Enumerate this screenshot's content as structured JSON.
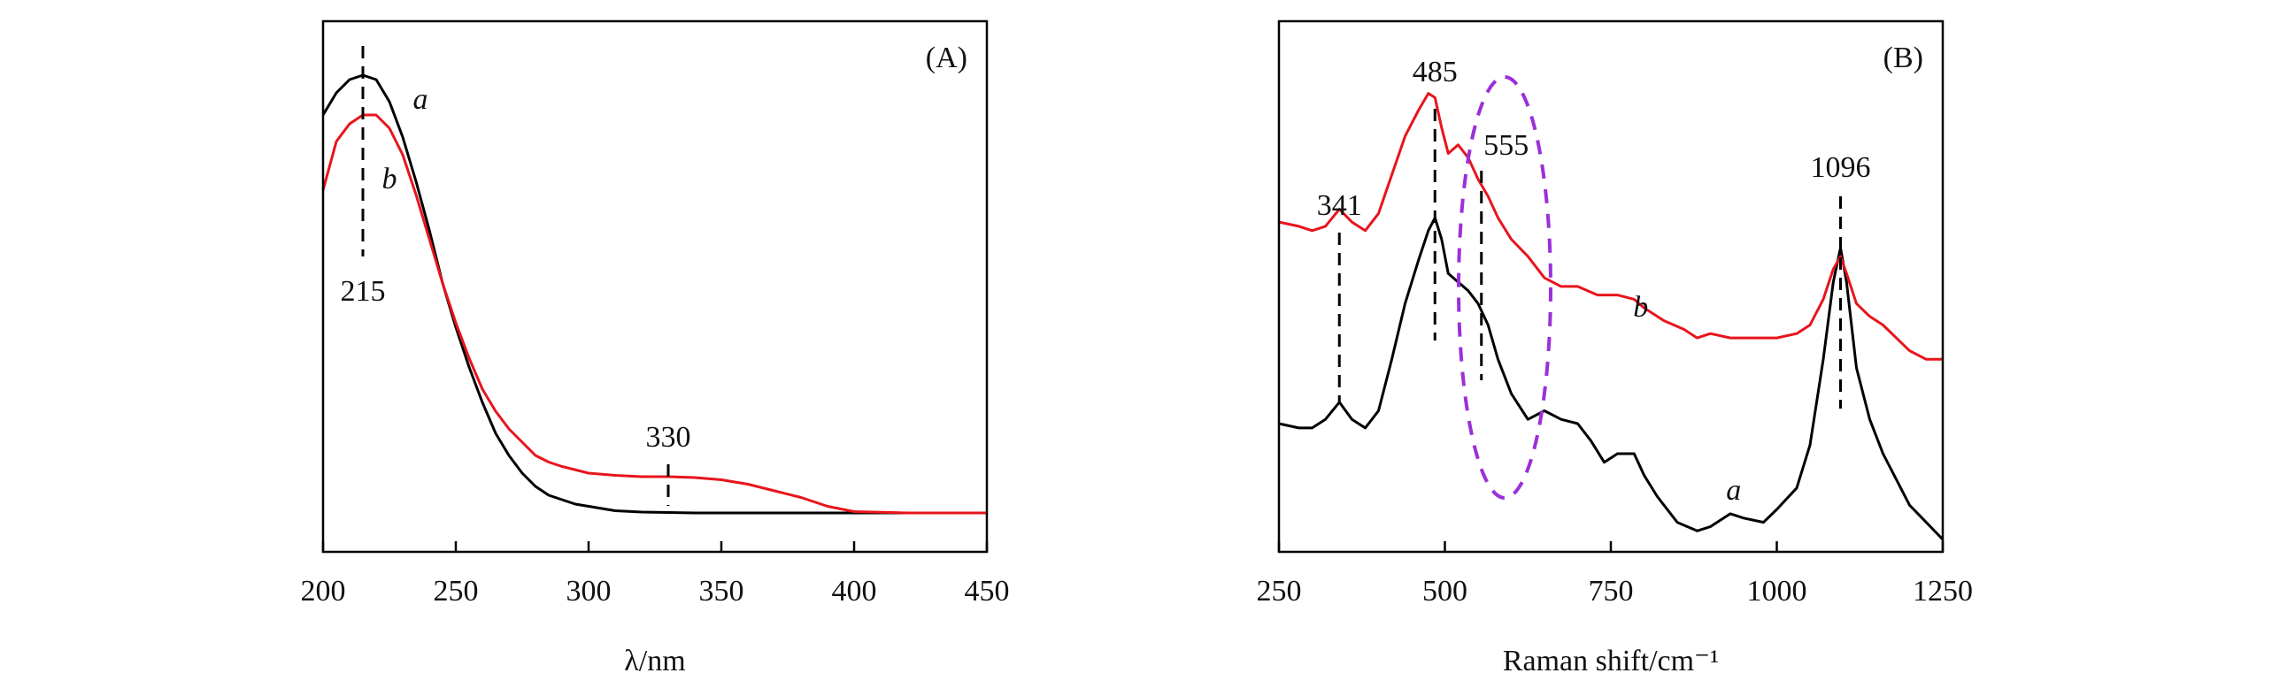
{
  "chart_data": [
    {
      "panel": "(A)",
      "type": "line",
      "xlabel": "λ/nm",
      "ylabel": "",
      "xlim": [
        200,
        450
      ],
      "ylim": [
        0,
        1
      ],
      "x_ticks": [
        "200",
        "250",
        "300",
        "350",
        "400",
        "450"
      ],
      "y_ticks_shown": false,
      "series": [
        {
          "name": "a",
          "color": "#000000",
          "x": [
            200,
            205,
            210,
            215,
            220,
            225,
            230,
            235,
            240,
            245,
            250,
            255,
            260,
            265,
            270,
            275,
            280,
            285,
            290,
            295,
            300,
            310,
            320,
            340,
            360,
            380,
            400,
            420,
            450
          ],
          "y": [
            0.9,
            0.95,
            0.98,
            0.99,
            0.98,
            0.93,
            0.85,
            0.75,
            0.64,
            0.52,
            0.42,
            0.33,
            0.25,
            0.18,
            0.13,
            0.09,
            0.06,
            0.04,
            0.03,
            0.02,
            0.015,
            0.005,
            0.002,
            0.0,
            0.0,
            0.0,
            0.0,
            0.0,
            0.0
          ]
        },
        {
          "name": "b",
          "color": "#e8141c",
          "x": [
            200,
            205,
            210,
            215,
            220,
            225,
            230,
            235,
            240,
            245,
            250,
            255,
            260,
            265,
            270,
            275,
            280,
            285,
            290,
            300,
            310,
            320,
            330,
            340,
            350,
            360,
            370,
            380,
            390,
            400,
            420,
            450
          ],
          "y": [
            0.73,
            0.84,
            0.88,
            0.9,
            0.9,
            0.87,
            0.81,
            0.72,
            0.62,
            0.52,
            0.43,
            0.35,
            0.28,
            0.23,
            0.19,
            0.16,
            0.13,
            0.115,
            0.105,
            0.09,
            0.085,
            0.082,
            0.082,
            0.08,
            0.075,
            0.065,
            0.05,
            0.035,
            0.015,
            0.003,
            0.0,
            0.0
          ]
        }
      ],
      "annotations": [
        {
          "text": "215",
          "x": 215
        },
        {
          "text": "330",
          "x": 330
        }
      ]
    },
    {
      "panel": "(B)",
      "type": "line",
      "xlabel": "Raman shift/cm⁻¹",
      "ylabel": "",
      "xlim": [
        250,
        1250
      ],
      "ylim": [
        0,
        1
      ],
      "x_ticks": [
        "250",
        "500",
        "750",
        "1000",
        "1250"
      ],
      "y_ticks_shown": false,
      "series": [
        {
          "name": "a",
          "color": "#000000",
          "x": [
            250,
            280,
            300,
            320,
            341,
            360,
            380,
            400,
            420,
            440,
            460,
            475,
            485,
            495,
            505,
            520,
            535,
            550,
            565,
            580,
            600,
            625,
            650,
            675,
            700,
            720,
            740,
            760,
            785,
            800,
            820,
            850,
            880,
            900,
            930,
            950,
            980,
            1000,
            1030,
            1050,
            1070,
            1085,
            1096,
            1105,
            1120,
            1140,
            1160,
            1180,
            1200,
            1225,
            1250
          ],
          "y": [
            0.27,
            0.26,
            0.26,
            0.28,
            0.32,
            0.28,
            0.26,
            0.3,
            0.42,
            0.55,
            0.65,
            0.72,
            0.75,
            0.7,
            0.62,
            0.6,
            0.58,
            0.55,
            0.5,
            0.42,
            0.34,
            0.28,
            0.3,
            0.28,
            0.27,
            0.23,
            0.18,
            0.2,
            0.2,
            0.15,
            0.1,
            0.04,
            0.02,
            0.03,
            0.06,
            0.05,
            0.04,
            0.07,
            0.12,
            0.22,
            0.42,
            0.6,
            0.68,
            0.6,
            0.4,
            0.28,
            0.2,
            0.14,
            0.08,
            0.04,
            0.0
          ]
        },
        {
          "name": "b",
          "color": "#e8141c",
          "x": [
            250,
            280,
            300,
            320,
            341,
            360,
            380,
            400,
            420,
            440,
            460,
            475,
            485,
            495,
            505,
            520,
            535,
            550,
            565,
            580,
            600,
            625,
            650,
            675,
            700,
            730,
            760,
            785,
            800,
            830,
            860,
            880,
            900,
            930,
            960,
            1000,
            1030,
            1050,
            1070,
            1085,
            1096,
            1105,
            1120,
            1140,
            1160,
            1180,
            1200,
            1225,
            1250
          ],
          "y": [
            0.74,
            0.73,
            0.72,
            0.73,
            0.77,
            0.74,
            0.72,
            0.76,
            0.85,
            0.94,
            1.0,
            1.04,
            1.03,
            0.96,
            0.9,
            0.92,
            0.89,
            0.84,
            0.8,
            0.75,
            0.7,
            0.66,
            0.61,
            0.59,
            0.59,
            0.57,
            0.57,
            0.56,
            0.54,
            0.51,
            0.49,
            0.47,
            0.48,
            0.47,
            0.47,
            0.47,
            0.48,
            0.5,
            0.56,
            0.63,
            0.66,
            0.62,
            0.55,
            0.52,
            0.5,
            0.47,
            0.44,
            0.42,
            0.42
          ]
        }
      ],
      "annotations": [
        {
          "text": "341",
          "x": 341
        },
        {
          "text": "485",
          "x": 485
        },
        {
          "text": "555",
          "x": 555
        },
        {
          "text": "1096",
          "x": 1096
        }
      ],
      "highlight": {
        "shape": "dashed-ellipse",
        "color": "#9b30d9",
        "x_center": 580
      }
    }
  ]
}
